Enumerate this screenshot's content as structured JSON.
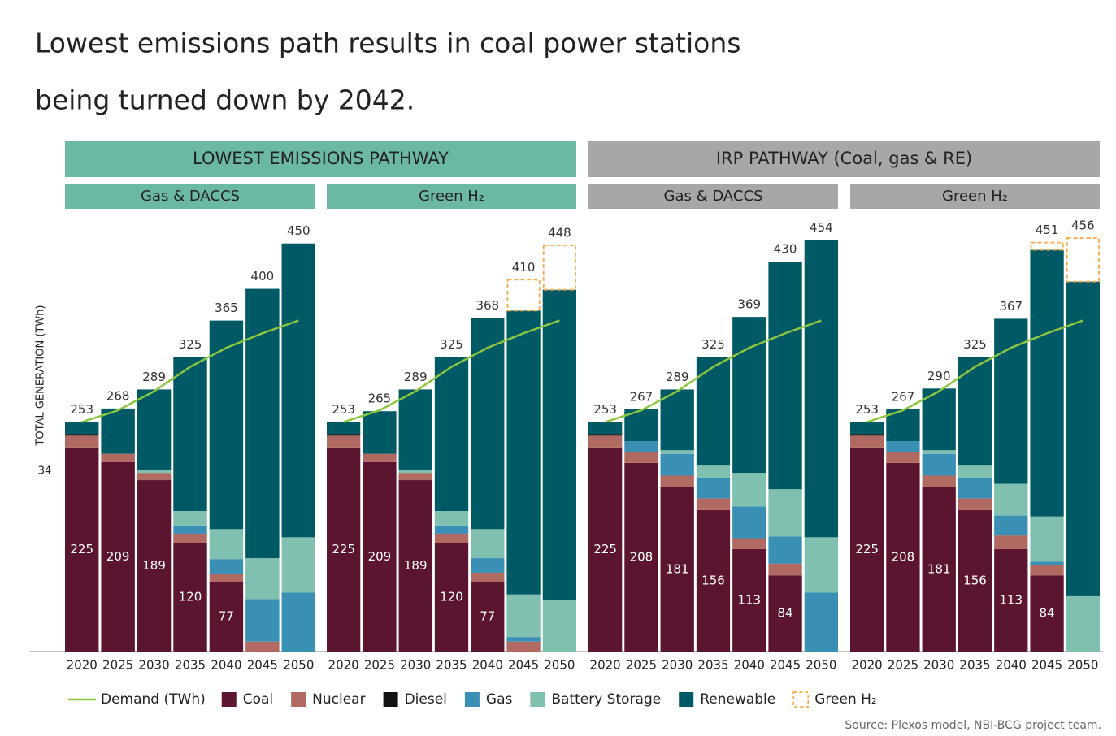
{
  "chart_data": {
    "type": "stacked_bar",
    "title_lines": [
      "Lowest emissions path results in coal power stations",
      "being turned down by 2042."
    ],
    "y_label": "TOTAL GENERATION (TWh)",
    "annotation": "34",
    "source": "Source: Plexos model, NBI-BCG project team.",
    "ylim": [
      0,
      465
    ],
    "categories": [
      "2020",
      "2025",
      "2030",
      "2035",
      "2040",
      "2045",
      "2050"
    ],
    "demand": {
      "name": "Demand (TWh)",
      "color": "#8cc63f"
    },
    "series": [
      {
        "name": "Coal",
        "color": "#5c1530"
      },
      {
        "name": "Nuclear",
        "color": "#b06a62"
      },
      {
        "name": "Diesel",
        "color": "#111111"
      },
      {
        "name": "Gas",
        "color": "#3a8fb5"
      },
      {
        "name": "Battery Storage",
        "color": "#7fc0b0"
      },
      {
        "name": "Renewable",
        "color": "#005a65"
      },
      {
        "name": "Green H₂",
        "color": "#f5a94a",
        "dashed": true
      }
    ],
    "groups": [
      {
        "name": "LOWEST EMISSIONS PATHWAY",
        "color": "#6bb8a5",
        "panels": [
          {
            "title": "Gas & DACCS",
            "totals": [
              253,
              268,
              289,
              325,
              365,
              400,
              450
            ],
            "demand": [
              253,
              266,
              287,
              314,
              335,
              351,
              365
            ],
            "values": [
              [
                225,
                209,
                189,
                120,
                77,
                0,
                0
              ],
              [
                13,
                9,
                8,
                10,
                9,
                11,
                0
              ],
              [
                2,
                0,
                0,
                0,
                0,
                0,
                0
              ],
              [
                0,
                0,
                0,
                9,
                16,
                47,
                65
              ],
              [
                0,
                0,
                3,
                16,
                33,
                45,
                61
              ],
              [
                13,
                50,
                89,
                170,
                230,
                297,
                324
              ],
              [
                0,
                0,
                0,
                0,
                0,
                0,
                0
              ]
            ]
          },
          {
            "title": "Green H₂",
            "totals": [
              253,
              265,
              289,
              325,
              368,
              410,
              448
            ],
            "demand": [
              253,
              266,
              287,
              314,
              335,
              351,
              365
            ],
            "values": [
              [
                225,
                209,
                189,
                120,
                77,
                0,
                0
              ],
              [
                13,
                9,
                8,
                10,
                10,
                11,
                0
              ],
              [
                2,
                0,
                0,
                0,
                0,
                0,
                0
              ],
              [
                0,
                0,
                0,
                9,
                16,
                5,
                0
              ],
              [
                0,
                0,
                3,
                16,
                32,
                47,
                57
              ],
              [
                13,
                47,
                89,
                170,
                233,
                313,
                342
              ],
              [
                0,
                0,
                0,
                0,
                0,
                34,
                49
              ]
            ]
          }
        ]
      },
      {
        "name": "IRP PATHWAY (Coal, gas & RE)",
        "color": "#a7a7aa",
        "panels": [
          {
            "title": "Gas & DACCS",
            "totals": [
              253,
              267,
              289,
              325,
              369,
              430,
              454
            ],
            "demand": [
              253,
              266,
              287,
              314,
              335,
              351,
              365
            ],
            "values": [
              [
                225,
                208,
                181,
                156,
                113,
                84,
                0
              ],
              [
                13,
                12,
                13,
                13,
                12,
                13,
                0
              ],
              [
                2,
                0,
                0,
                0,
                0,
                0,
                0
              ],
              [
                0,
                12,
                24,
                22,
                35,
                30,
                65
              ],
              [
                0,
                0,
                4,
                14,
                37,
                52,
                61
              ],
              [
                13,
                35,
                67,
                120,
                172,
                251,
                328
              ],
              [
                0,
                0,
                0,
                0,
                0,
                0,
                0
              ]
            ]
          },
          {
            "title": "Green H₂",
            "totals": [
              253,
              267,
              290,
              325,
              367,
              451,
              456
            ],
            "demand": [
              253,
              266,
              287,
              314,
              335,
              351,
              365
            ],
            "values": [
              [
                225,
                208,
                181,
                156,
                113,
                84,
                0
              ],
              [
                13,
                12,
                13,
                13,
                15,
                11,
                0
              ],
              [
                2,
                0,
                0,
                0,
                0,
                0,
                0
              ],
              [
                0,
                12,
                24,
                22,
                22,
                4,
                0
              ],
              [
                0,
                0,
                4,
                14,
                35,
                50,
                61
              ],
              [
                13,
                35,
                68,
                120,
                182,
                294,
                347
              ],
              [
                0,
                0,
                0,
                0,
                0,
                8,
                48
              ]
            ]
          }
        ]
      }
    ]
  }
}
